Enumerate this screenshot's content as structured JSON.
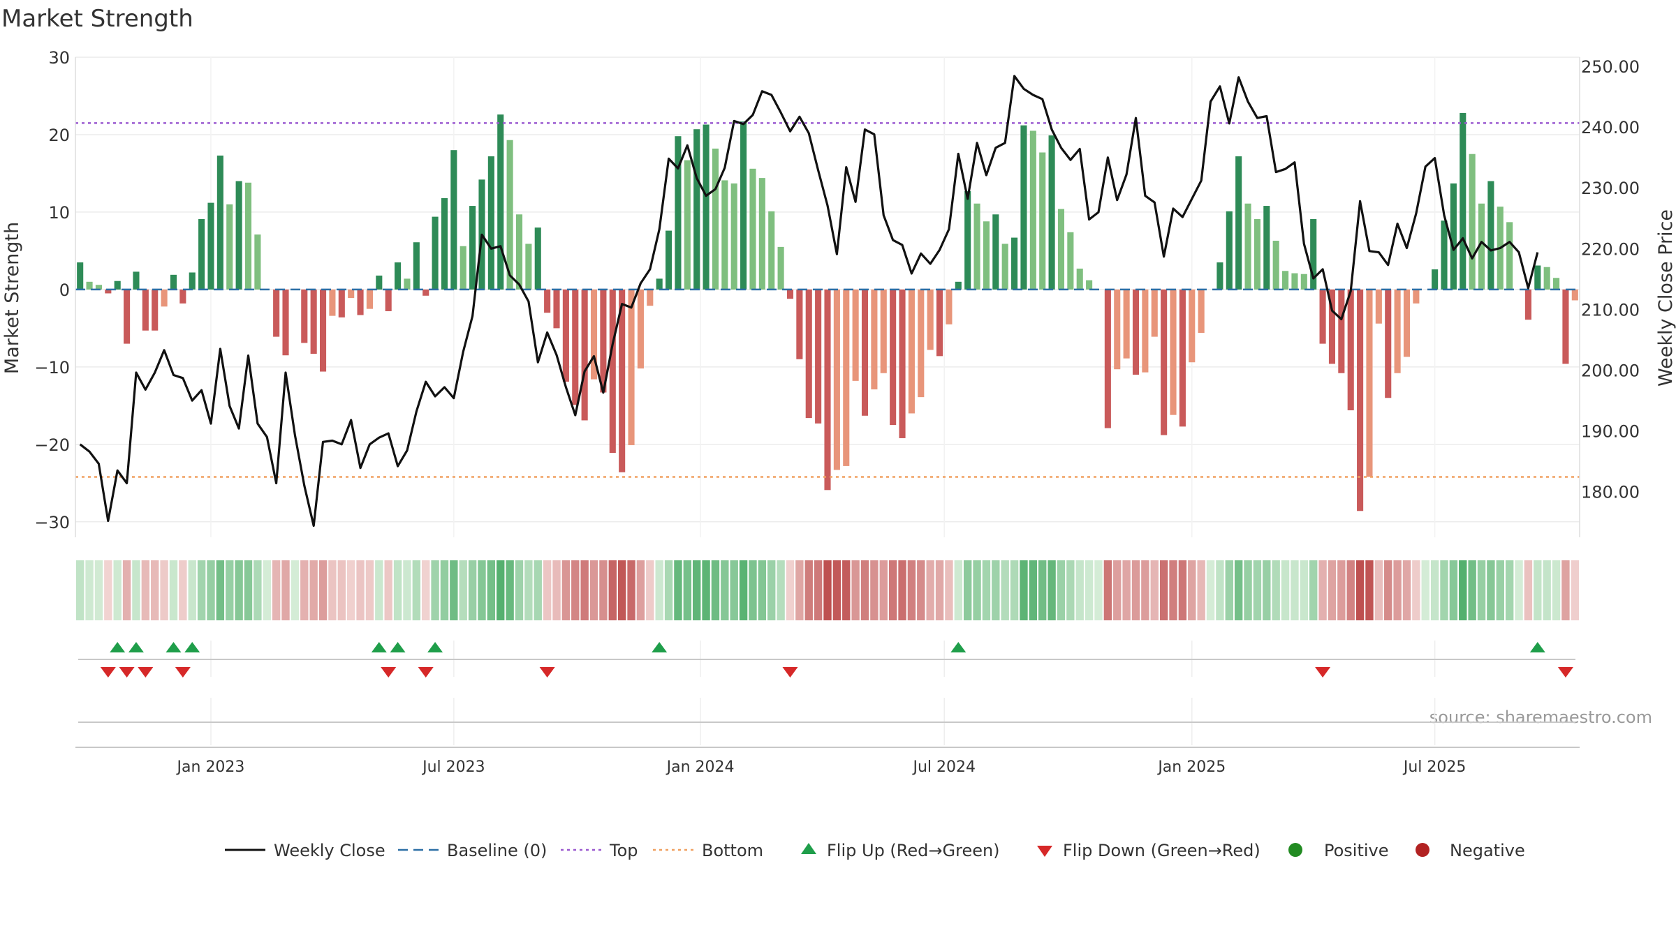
{
  "chart_data": {
    "type": "bar",
    "title": "Market Strength",
    "ylabel": "Market Strength",
    "y2label": "Weekly Close Price",
    "ylim": [
      -32,
      30
    ],
    "y2lim": [
      172.5,
      251.5
    ],
    "yticks": [
      30,
      20,
      10,
      0,
      -10,
      -20,
      -30
    ],
    "yticklabels": [
      "30",
      "20",
      "10",
      "0",
      "−10",
      "−20",
      "−30"
    ],
    "y2ticks": [
      250,
      240,
      230,
      220,
      210,
      200,
      190,
      180
    ],
    "y2ticklabels": [
      "250.00",
      "240.00",
      "230.00",
      "220.00",
      "210.00",
      "200.00",
      "190.00",
      "180.00"
    ],
    "top_line": 21.5,
    "bottom_line": -24.2,
    "xticklabels": [
      {
        "label": "Jan 2023",
        "week": 14.5
      },
      {
        "label": "Jul 2023",
        "week": 40.5
      },
      {
        "label": "Jan 2024",
        "week": 66.9
      },
      {
        "label": "Jul 2024",
        "week": 93.0
      },
      {
        "label": "Jan 2025",
        "week": 119.5
      },
      {
        "label": "Jul 2025",
        "week": 145.5
      }
    ],
    "strength": [
      3.5,
      1,
      0.6,
      -0.5,
      1.1,
      -7,
      2.3,
      -5.3,
      -5.3,
      -2.2,
      1.9,
      -1.8,
      2.2,
      9.1,
      11.2,
      17.3,
      11,
      14,
      13.8,
      7.1,
      0,
      -6.1,
      -8.5,
      0,
      -6.9,
      -8.3,
      -10.6,
      -3.4,
      -3.6,
      -1.1,
      -3.3,
      -2.5,
      1.8,
      -2.8,
      3.5,
      1.4,
      6.1,
      -0.8,
      9.4,
      11.8,
      18,
      5.6,
      10.8,
      14.2,
      17.2,
      22.6,
      19.3,
      9.7,
      5.9,
      8,
      -3,
      -5,
      -11.9,
      -14.9,
      -16.9,
      -11.6,
      -13.3,
      -21.1,
      -23.6,
      -20.1,
      -10.2,
      -2.1,
      1.4,
      7.6,
      19.8,
      16.7,
      20.7,
      21.3,
      18.2,
      14.1,
      13.7,
      21.7,
      15.6,
      14.4,
      10.1,
      5.5,
      -1.2,
      -9,
      -16.6,
      -17.3,
      -25.9,
      -23.3,
      -22.8,
      -11.8,
      -16.3,
      -12.9,
      -10.8,
      -17.5,
      -19.2,
      -16,
      -13.9,
      -7.8,
      -8.6,
      -4.5,
      1,
      12.7,
      11.1,
      8.8,
      9.7,
      5.9,
      6.7,
      21.2,
      20.5,
      17.7,
      19.9,
      10.4,
      7.4,
      2.7,
      1.2,
      0,
      -17.9,
      -10.3,
      -8.9,
      -11,
      -10.7,
      -6.1,
      -18.8,
      -16.2,
      -17.7,
      -9.4,
      -5.6,
      0,
      3.5,
      10.1,
      17.2,
      11.1,
      9.1,
      10.8,
      6.3,
      2.4,
      2.1,
      2,
      9.1,
      -7,
      -9.6,
      -10.8,
      -15.6,
      -28.6,
      -24.2,
      -4.4,
      -14,
      -10.8,
      -8.7,
      -1.8,
      0,
      2.6,
      8.9,
      13.7,
      22.8,
      17.5,
      11.1,
      14,
      10.7,
      8.7,
      0,
      -3.9,
      3.1,
      2.9,
      1.5,
      -9.6,
      -1.4
    ],
    "weekly_close": [
      187.8,
      186.6,
      184.6,
      175.2,
      183.5,
      181.4,
      199.6,
      196.8,
      199.6,
      203.3,
      199.2,
      198.7,
      195,
      196.7,
      191.2,
      203.5,
      194.1,
      190.4,
      202.4,
      191.2,
      189,
      181.4,
      199.6,
      189.3,
      181,
      174.4,
      188.2,
      188.4,
      187.8,
      191.8,
      183.9,
      187.8,
      188.9,
      189.6,
      184.2,
      186.8,
      193.2,
      198.1,
      195.7,
      197.2,
      195.4,
      203,
      208.9,
      222.3,
      220,
      220.4,
      215.6,
      214.1,
      211.3,
      201.3,
      206.2,
      202.5,
      197.2,
      192.6,
      199.8,
      202.3,
      196.3,
      204.3,
      210.9,
      210.3,
      214.3,
      216.6,
      223.2,
      234.8,
      233.2,
      237,
      231.6,
      228.7,
      229.8,
      233.3,
      241,
      240.5,
      242,
      245.9,
      245.3,
      242.4,
      239.3,
      241.7,
      239,
      232.9,
      227.1,
      219.1,
      233.4,
      227.7,
      239.6,
      238.8,
      225.5,
      221.4,
      220.6,
      215.9,
      219.2,
      217.5,
      219.8,
      223.2,
      235.6,
      228.2,
      237.4,
      232.1,
      236.6,
      237.4,
      248.4,
      246.3,
      245.3,
      244.6,
      239.6,
      236.6,
      234.6,
      236.4,
      224.8,
      226,
      235,
      228,
      232.2,
      241.5,
      228.7,
      227.6,
      218.7,
      226.6,
      225.2,
      228.2,
      231.2,
      244.2,
      246.7,
      240.6,
      248.2,
      244.2,
      241.5,
      241.8,
      232.6,
      233.1,
      234.2,
      220.8,
      215.1,
      216.6,
      209.8,
      208.4,
      213,
      227.8,
      219.6,
      219.4,
      217.3,
      224.1,
      220.1,
      225.8,
      233.5,
      234.9,
      225.5,
      219.8,
      221.7,
      218.4,
      221.1,
      219.7,
      220.1,
      221.1,
      219.4,
      213.5,
      219.4
    ],
    "legend": [
      "Weekly Close",
      "Baseline (0)",
      "Top",
      "Bottom",
      "Flip Up (Red→Green)",
      "Flip Down (Green→Red)",
      "Positive",
      "Negative"
    ],
    "annotation": "source: sharemaestro.com",
    "colors": {
      "pos_dark": "#2e8b57",
      "pos_light": "#7fbf7f",
      "neg_dark": "#c95a5a",
      "neg_light": "#e8957a",
      "baseline": "#2c6fa6",
      "top": "#9b59d0",
      "bottom": "#f0a060",
      "flip_up": "#1f9e4a",
      "flip_down": "#d62828",
      "positive_dot": "#228b22",
      "negative_dot": "#b22222",
      "line": "#111111"
    }
  }
}
